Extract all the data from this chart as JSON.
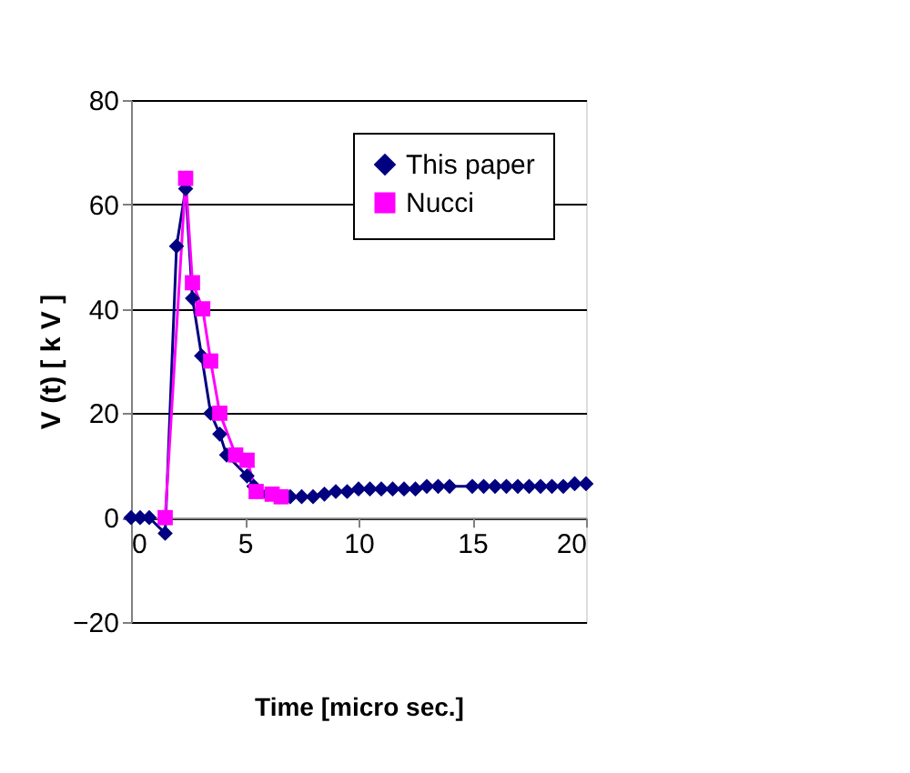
{
  "chart_data": {
    "type": "line",
    "xlabel": "Time [micro sec.]",
    "ylabel": "V (t)  [ k V ]",
    "xlim": [
      0,
      20
    ],
    "xticks": [
      0,
      5,
      10,
      15,
      20
    ],
    "ylim": [
      -20,
      80
    ],
    "yticks": [
      -20,
      0,
      20,
      40,
      60,
      80
    ],
    "grid": "y",
    "legend": "top right",
    "line_style": "solid",
    "series": [
      {
        "name": "This paper",
        "color": "#000080",
        "marker": "diamond",
        "x": [
          0,
          0.4,
          0.8,
          1.5,
          2.0,
          2.4,
          2.7,
          3.1,
          3.5,
          3.9,
          4.2,
          5.1,
          5.4,
          6.0,
          6.5,
          7.0,
          7.5,
          8.0,
          8.5,
          9.0,
          9.5,
          10.0,
          10.5,
          11.0,
          11.5,
          12.0,
          12.5,
          13.0,
          13.5,
          14.0,
          15.0,
          15.5,
          16.0,
          16.5,
          17.0,
          17.5,
          18.0,
          18.5,
          19.0,
          19.5,
          20.0
        ],
        "values": [
          0,
          0,
          0,
          -3,
          52,
          63,
          42,
          31,
          20,
          16,
          12,
          8,
          6,
          4.5,
          4,
          4,
          4,
          4,
          4.5,
          5,
          5,
          5.5,
          5.5,
          5.5,
          5.5,
          5.5,
          5.5,
          6,
          6,
          6,
          6,
          6,
          6,
          6,
          6,
          6,
          6,
          6,
          6,
          6.5,
          6.5
        ]
      },
      {
        "name": "Nucci",
        "color": "#ff00ff",
        "marker": "square",
        "x": [
          1.5,
          2.4,
          2.7,
          3.15,
          3.5,
          3.9,
          4.6,
          5.1,
          5.5,
          6.2,
          6.6
        ],
        "values": [
          0,
          65,
          45,
          40,
          30,
          20,
          12,
          11,
          5,
          4.5,
          4
        ]
      }
    ]
  }
}
